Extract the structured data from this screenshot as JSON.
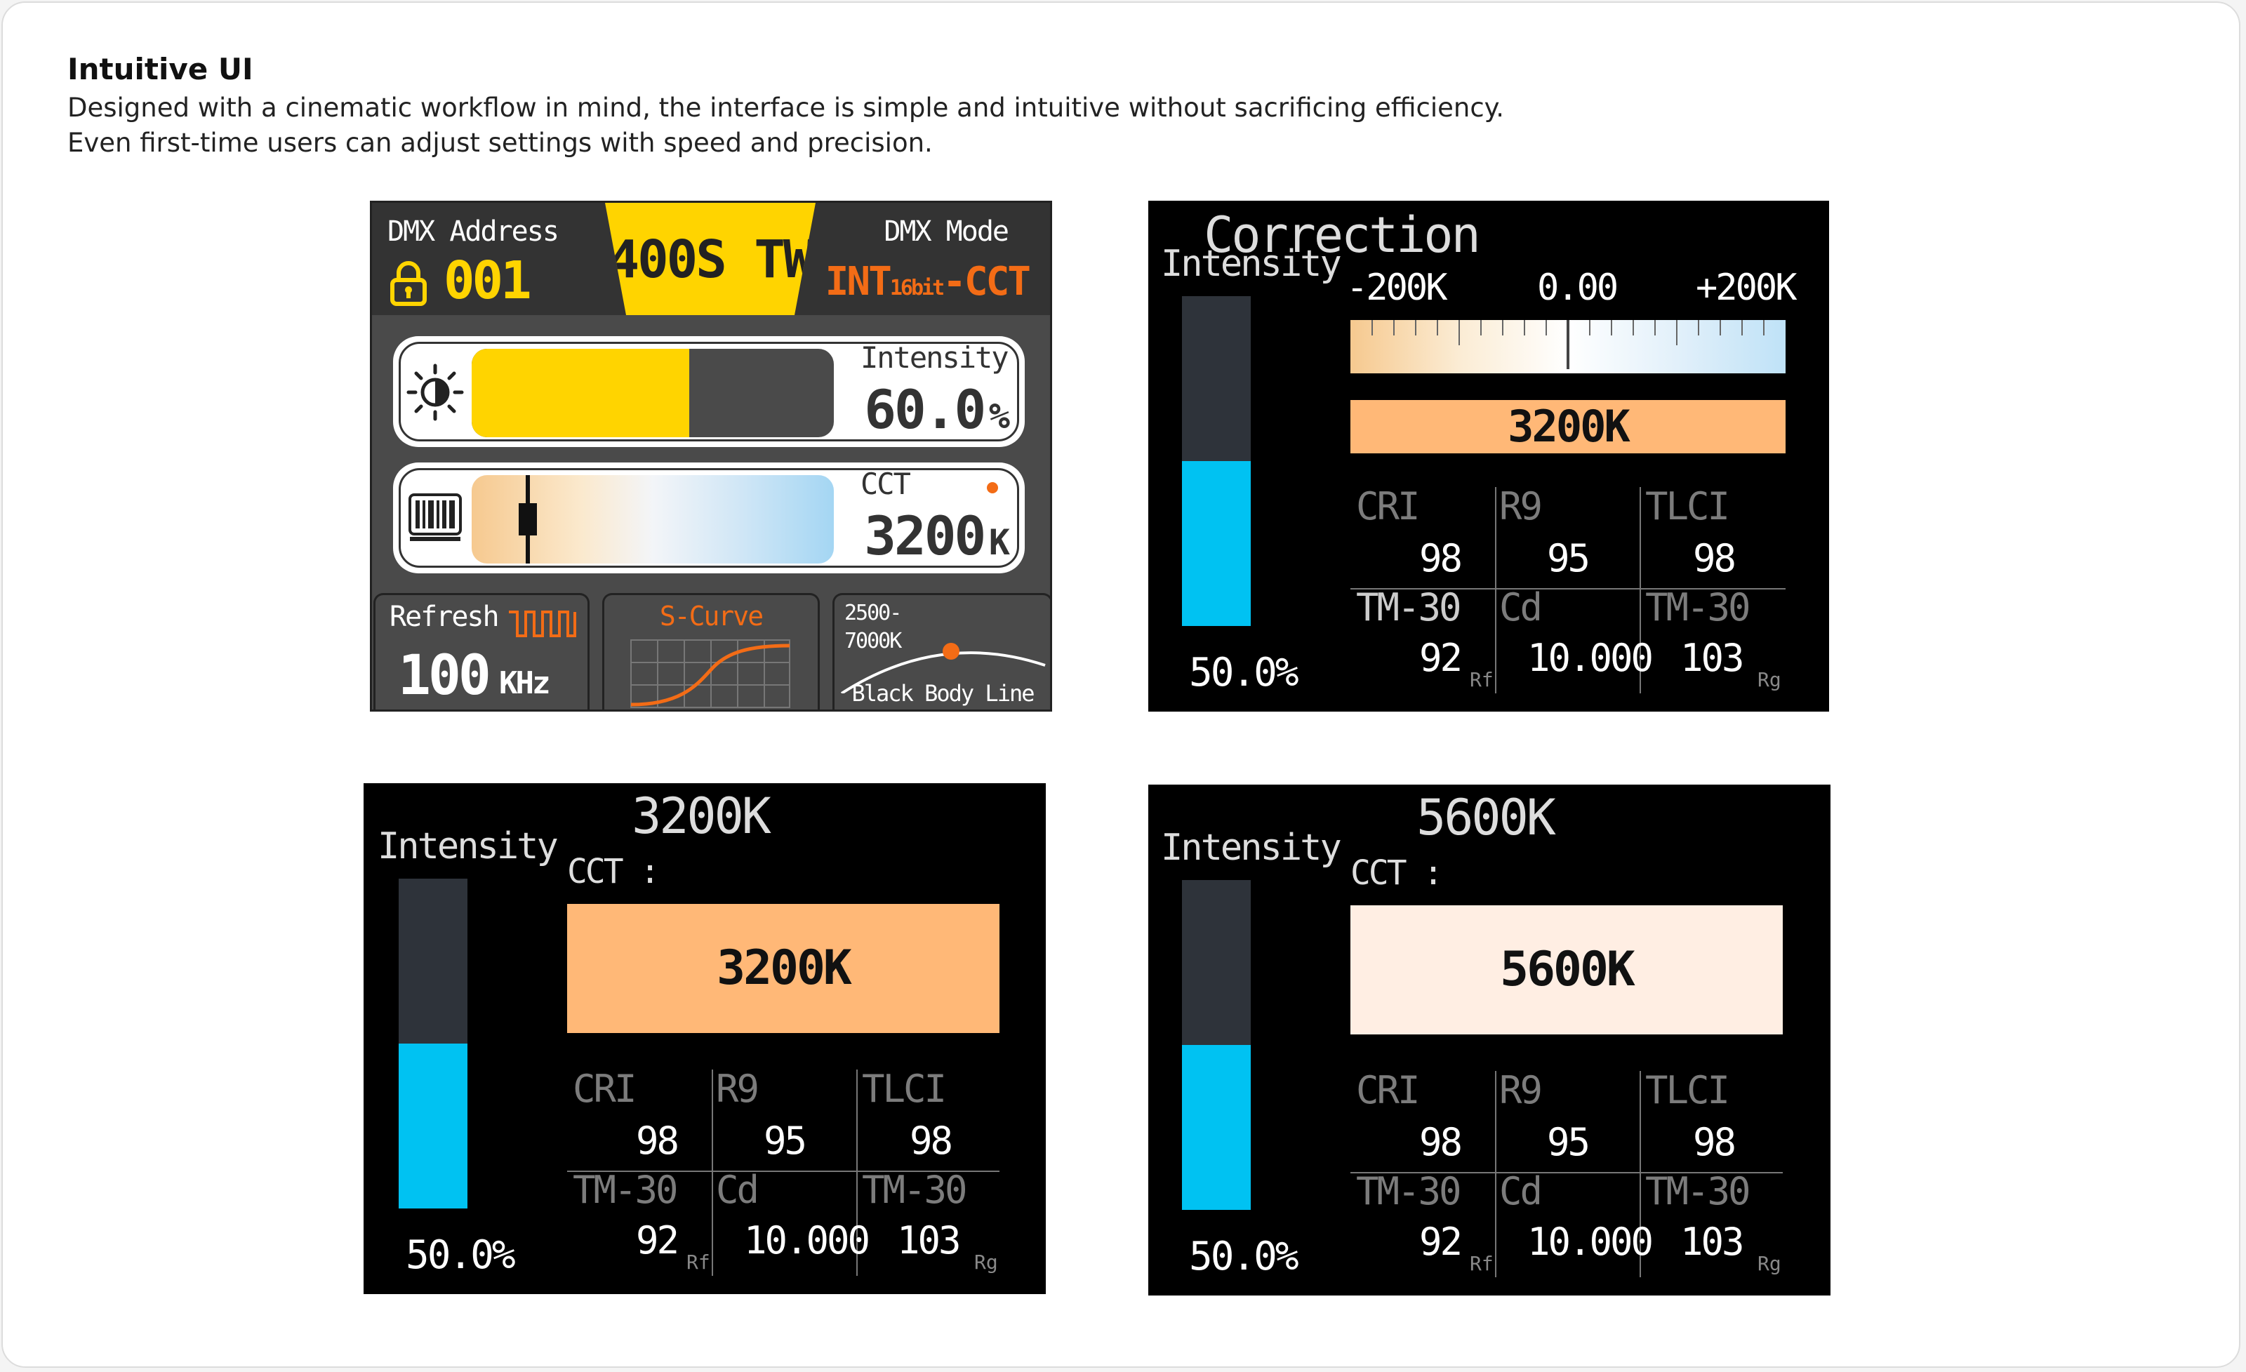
{
  "header": {
    "title": "Intuitive UI",
    "desc_line1": "Designed with a cinematic workflow in mind, the interface is simple and intuitive without sacrificing efficiency.",
    "desc_line2": "Even first-time users can adjust settings with speed and precision."
  },
  "panel_main": {
    "dmx_address_label": "DMX Address",
    "dmx_address_value": "001",
    "model": "400S TW",
    "dmx_mode_label": "DMX Mode",
    "dmx_mode_prefix": "INT",
    "dmx_mode_sub": "16bit",
    "dmx_mode_suffix": "-CCT",
    "intensity_label": "Intensity",
    "intensity_value": "60.0",
    "intensity_unit": "%",
    "intensity_level": 0.6,
    "cct_label": "CCT",
    "cct_value": "3200",
    "cct_unit": "K",
    "refresh_label": "Refresh",
    "refresh_value": "100",
    "refresh_unit": "KHz",
    "curve_label": "S-Curve",
    "range_line1": "2500-",
    "range_line2": "7000K",
    "bbl_label": "Black Body Line",
    "colors": {
      "accent_yellow": "#ffd400",
      "accent_orange": "#f36c16",
      "panel": "#4a4a4a"
    }
  },
  "panel_correction": {
    "title": "Correction",
    "intensity_label": "Intensity",
    "intensity_value": "50.0",
    "intensity_unit": "%",
    "intensity_level": 0.5,
    "scale_min": "-200K",
    "scale_value": "0.00",
    "scale_max": "+200K",
    "cct_box": "3200K",
    "cri_label": "CRI",
    "cri": "98",
    "r9_label": "R9",
    "r9": "95",
    "tlci_label": "TLCI",
    "tlci": "98",
    "tm30_label": "TM-30",
    "tm30_rf": "92",
    "rf": "Rf",
    "cd_label": "Cd",
    "cd": "10.000",
    "tm30_label2": "TM-30",
    "tm30_rg": "103",
    "rg": "Rg"
  },
  "panel_3200": {
    "title": "3200K",
    "intensity_label": "Intensity",
    "intensity_value": "50.0",
    "intensity_unit": "%",
    "intensity_level": 0.5,
    "cct_label": "CCT :",
    "cct_box": "3200K",
    "box_color": "#ffb877",
    "cri_label": "CRI",
    "cri": "98",
    "r9_label": "R9",
    "r9": "95",
    "tlci_label": "TLCI",
    "tlci": "98",
    "tm30_label": "TM-30",
    "tm30_rf": "92",
    "rf": "Rf",
    "cd_label": "Cd",
    "cd": "10.000",
    "tm30_label2": "TM-30",
    "tm30_rg": "103",
    "rg": "Rg"
  },
  "panel_5600": {
    "title": "5600K",
    "intensity_label": "Intensity",
    "intensity_value": "50.0",
    "intensity_unit": "%",
    "intensity_level": 0.5,
    "cct_label": "CCT :",
    "cct_box": "5600K",
    "box_color": "#ffeee3",
    "cri_label": "CRI",
    "cri": "98",
    "r9_label": "R9",
    "r9": "95",
    "tlci_label": "TLCI",
    "tlci": "98",
    "tm30_label": "TM-30",
    "tm30_rf": "92",
    "rf": "Rf",
    "cd_label": "Cd",
    "cd": "10.000",
    "tm30_label2": "TM-30",
    "tm30_rg": "103",
    "rg": "Rg"
  }
}
